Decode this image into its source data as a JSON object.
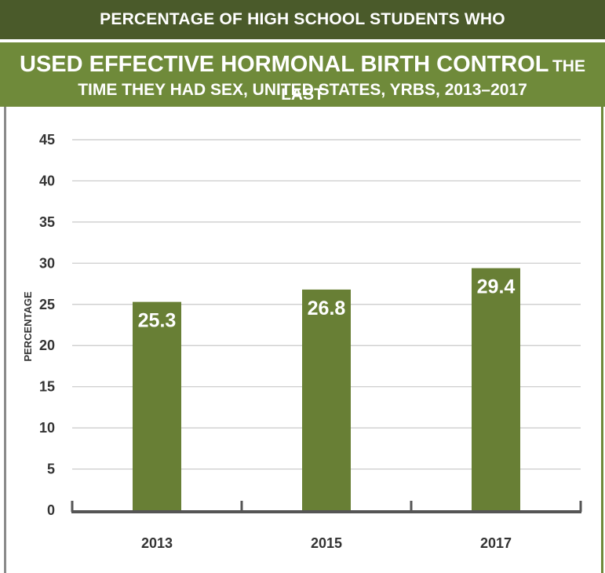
{
  "header": {
    "line_top": "PERCENTAGE OF HIGH SCHOOL STUDENTS WHO",
    "line_emphasis": "USED EFFECTIVE HORMONAL BIRTH CONTROL",
    "line_emphasis_tail": "THE LAST",
    "line_bottom": "TIME THEY HAD SEX, UNITED STATES, YRBS, 2013–2017"
  },
  "colors": {
    "dark_band": "#4a5a2a",
    "light_band": "#6f8a3a",
    "bar": "#687f35",
    "gridline": "#c8c8c8",
    "axis": "#555555"
  },
  "chart_data": {
    "type": "bar",
    "categories": [
      "2013",
      "2015",
      "2017"
    ],
    "values": [
      25.3,
      26.8,
      29.4
    ],
    "value_labels": [
      "25.3",
      "26.8",
      "29.4"
    ],
    "title": "PERCENTAGE OF HIGH SCHOOL STUDENTS WHO USED EFFECTIVE HORMONAL BIRTH CONTROL THE LAST TIME THEY HAD SEX, UNITED STATES, YRBS, 2013–2017",
    "xlabel": "",
    "ylabel": "PERCENTAGE",
    "ylim": [
      0,
      45
    ],
    "yticks": [
      0,
      5,
      10,
      15,
      20,
      25,
      30,
      35,
      40,
      45
    ],
    "grid": true,
    "legend": "none"
  }
}
